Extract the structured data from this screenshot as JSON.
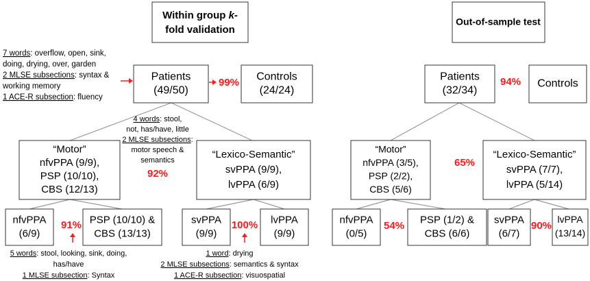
{
  "left": {
    "title": [
      "Within group ",
      "k",
      "-",
      "fold validation"
    ],
    "patients": [
      "Patients",
      "(49/50)"
    ],
    "controls": [
      "Controls",
      "(24/24)"
    ],
    "patients_accuracy": "99%",
    "patients_features": [
      {
        "underlined": "7 words",
        "text": ": overflow, open, sink,"
      },
      {
        "text": "doing, drying, over, garden"
      },
      {
        "underlined": "2 MLSE subsections",
        "text": ": syntax &"
      },
      {
        "text": "working memory"
      },
      {
        "underlined": "1 ACE-R subsection",
        "text": ": fluency"
      }
    ],
    "subtype_features": [
      {
        "underlined": "4 words",
        "text": ": stool,"
      },
      {
        "text": "not, has/have, little"
      },
      {
        "underlined": "2 MLSE subsections",
        "text": ":"
      },
      {
        "text": "motor speech &"
      },
      {
        "text": "semantics"
      }
    ],
    "subtype_accuracy": "92%",
    "motor": [
      "“Motor”",
      "nfvPPA (9/9),",
      "PSP (10/10),",
      "CBS (12/13)"
    ],
    "lexico": [
      "“Lexico-Semantic”",
      "svPPA (9/9),",
      "lvPPA (6/9)"
    ],
    "nfvppa": [
      "nfvPPA",
      "(6/9)"
    ],
    "psp_cbs": [
      "PSP (10/10) &",
      "CBS (13/13)"
    ],
    "motor_accuracy": "91%",
    "motor_features": [
      {
        "underlined": "5 words",
        "text": ": stool, looking, sink, doing,"
      },
      {
        "text": "has/have"
      },
      {
        "underlined": "1 MLSE subsection",
        "text": ": Syntax"
      }
    ],
    "svppa": [
      "svPPA",
      "(9/9)"
    ],
    "lvppa": [
      "lvPPA",
      "(9/9)"
    ],
    "lexico_accuracy": "100%",
    "lexico_features": [
      {
        "underlined": "1 word",
        "text": ": drying"
      },
      {
        "underlined": "2 MLSE subsections",
        "text": ": semantics & syntax"
      },
      {
        "underlined": "1 ACE-R subsection",
        "text": ": visuospatial"
      }
    ]
  },
  "right": {
    "title": "Out-of-sample test",
    "patients": [
      "Patients",
      "(32/34)"
    ],
    "controls": [
      "Controls"
    ],
    "patients_accuracy": "94%",
    "motor": [
      "“Motor”",
      "nfvPPA (3/5),",
      "PSP (2/2),",
      "CBS (5/6)"
    ],
    "lexico": [
      "“Lexico-Semantic”",
      "svPPA (7/7),",
      "lvPPA (5/14)"
    ],
    "subtype_accuracy": "65%",
    "nfvppa": [
      "nfvPPA",
      "(0/5)"
    ],
    "psp_cbs": [
      "PSP (1/2) &",
      "CBS (6/6)"
    ],
    "motor_accuracy": "54%",
    "svppa": [
      "svPPA",
      "(6/7)"
    ],
    "lvppa": [
      "lvPPA",
      "(13/14)"
    ],
    "lexico_accuracy": "90%"
  }
}
